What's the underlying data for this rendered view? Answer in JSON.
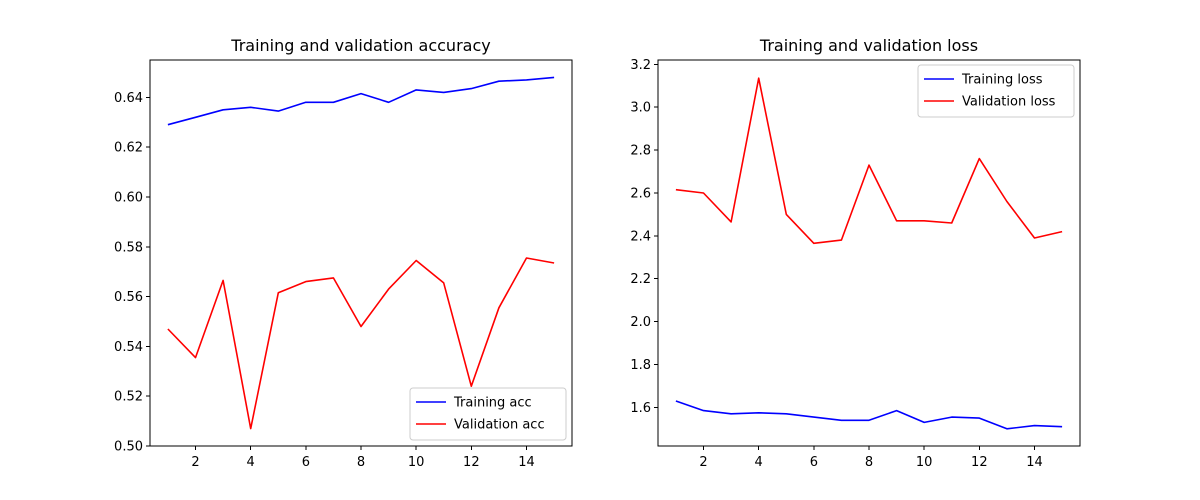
{
  "chart_data": [
    {
      "type": "line",
      "title": "Training and validation accuracy",
      "xlabel": "",
      "ylabel": "",
      "xlim": [
        0.35,
        15.65
      ],
      "ylim": [
        0.5,
        0.655
      ],
      "xticks": [
        2,
        4,
        6,
        8,
        10,
        12,
        14
      ],
      "yticks": [
        0.5,
        0.52,
        0.54,
        0.56,
        0.58,
        0.6,
        0.62,
        0.64
      ],
      "ytick_labels": [
        "0.50",
        "0.52",
        "0.54",
        "0.56",
        "0.58",
        "0.60",
        "0.62",
        "0.64"
      ],
      "legend_position": "lower-right",
      "grid": false,
      "x": [
        1,
        2,
        3,
        4,
        5,
        6,
        7,
        8,
        9,
        10,
        11,
        12,
        13,
        14,
        15
      ],
      "series": [
        {
          "name": "Training acc",
          "color": "#0000ff",
          "values": [
            0.629,
            0.632,
            0.635,
            0.636,
            0.6345,
            0.638,
            0.638,
            0.6415,
            0.638,
            0.643,
            0.642,
            0.6435,
            0.6465,
            0.647,
            0.648
          ]
        },
        {
          "name": "Validation acc",
          "color": "#ff0000",
          "values": [
            0.547,
            0.5355,
            0.5665,
            0.507,
            0.5615,
            0.566,
            0.5675,
            0.548,
            0.563,
            0.5745,
            0.5655,
            0.524,
            0.5555,
            0.5755,
            0.5735
          ]
        }
      ]
    },
    {
      "type": "line",
      "title": "Training and validation loss",
      "xlabel": "",
      "ylabel": "",
      "xlim": [
        0.35,
        15.65
      ],
      "ylim": [
        1.42,
        3.22
      ],
      "xticks": [
        2,
        4,
        6,
        8,
        10,
        12,
        14
      ],
      "yticks": [
        1.6,
        1.8,
        2.0,
        2.2,
        2.4,
        2.6,
        2.8,
        3.0,
        3.2
      ],
      "ytick_labels": [
        "1.6",
        "1.8",
        "2.0",
        "2.2",
        "2.4",
        "2.6",
        "2.8",
        "3.0",
        "3.2"
      ],
      "legend_position": "upper-right",
      "grid": false,
      "x": [
        1,
        2,
        3,
        4,
        5,
        6,
        7,
        8,
        9,
        10,
        11,
        12,
        13,
        14,
        15
      ],
      "series": [
        {
          "name": "Training loss",
          "color": "#0000ff",
          "values": [
            1.63,
            1.585,
            1.57,
            1.575,
            1.57,
            1.555,
            1.54,
            1.54,
            1.585,
            1.53,
            1.555,
            1.55,
            1.5,
            1.515,
            1.51
          ]
        },
        {
          "name": "Validation loss",
          "color": "#ff0000",
          "values": [
            2.615,
            2.6,
            2.465,
            3.135,
            2.5,
            2.365,
            2.38,
            2.73,
            2.47,
            2.47,
            2.46,
            2.76,
            2.56,
            2.39,
            2.42
          ]
        }
      ]
    }
  ]
}
